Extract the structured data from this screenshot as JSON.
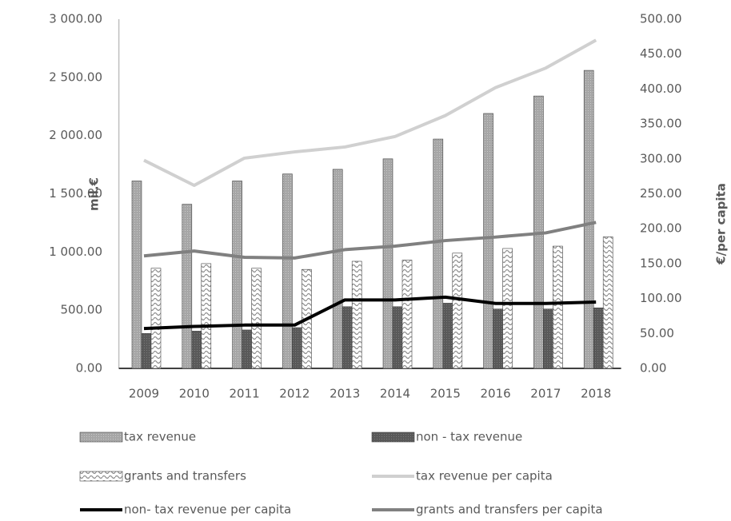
{
  "chart_data": {
    "type": "bar",
    "y_label": "mil.€",
    "y2_label": "€/per capita",
    "categories": [
      "2009",
      "2010",
      "2011",
      "2012",
      "2013",
      "2014",
      "2015",
      "2016",
      "2017",
      "2018"
    ],
    "series": [
      {
        "name": "tax revenue",
        "type": "bar",
        "color": "#a6a6a6",
        "values": [
          1610,
          1410,
          1610,
          1670,
          1710,
          1800,
          1970,
          2190,
          2340,
          2560
        ]
      },
      {
        "name": "non - tax revenue",
        "type": "bar",
        "color": "#595959",
        "values": [
          300,
          320,
          330,
          350,
          530,
          530,
          560,
          510,
          510,
          520
        ]
      },
      {
        "name": "grants and transfers",
        "type": "bar",
        "color": "#8c8c8c",
        "values": [
          860,
          900,
          860,
          850,
          920,
          930,
          990,
          1030,
          1050,
          1130
        ]
      },
      {
        "name": "tax revenue per capita",
        "type": "line",
        "axis": "y2",
        "color": "#d0d0d0",
        "values": [
          298,
          262,
          301,
          310,
          317,
          332,
          362,
          402,
          430,
          470
        ]
      },
      {
        "name": "non- tax revenue per capita",
        "type": "line",
        "axis": "y2",
        "color": "#000000",
        "values": [
          57,
          60,
          62,
          62,
          98,
          98,
          102,
          93,
          93,
          95
        ]
      },
      {
        "name": "grants and transfers per capita",
        "type": "line",
        "axis": "y2",
        "color": "#808080",
        "values": [
          161,
          168,
          159,
          158,
          170,
          175,
          183,
          188,
          194,
          209
        ]
      }
    ],
    "ylim": [
      0,
      3000
    ],
    "yticks": [
      {
        "value": 0,
        "label": "0.00"
      },
      {
        "value": 500,
        "label": "500.00"
      },
      {
        "value": 1000,
        "label": "1 000.00"
      },
      {
        "value": 1500,
        "label": "1 500.00"
      },
      {
        "value": 2000,
        "label": "2 000.00"
      },
      {
        "value": 2500,
        "label": "2 500.00"
      },
      {
        "value": 3000,
        "label": "3 000.00"
      }
    ],
    "y2lim": [
      0,
      500
    ],
    "y2ticks": [
      {
        "value": 0,
        "label": "0.00"
      },
      {
        "value": 50,
        "label": "50.00"
      },
      {
        "value": 100,
        "label": "100.00"
      },
      {
        "value": 150,
        "label": "150.00"
      },
      {
        "value": 200,
        "label": "200.00"
      },
      {
        "value": 250,
        "label": "250.00"
      },
      {
        "value": 300,
        "label": "300.00"
      },
      {
        "value": 350,
        "label": "350.00"
      },
      {
        "value": 400,
        "label": "400.00"
      },
      {
        "value": 450,
        "label": "450.00"
      },
      {
        "value": 500,
        "label": "500.00"
      }
    ],
    "grid": false
  }
}
